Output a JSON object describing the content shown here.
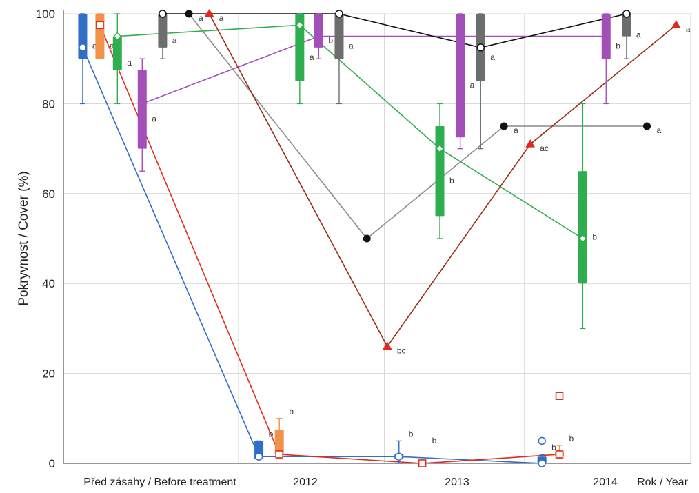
{
  "chart_data": {
    "type": "box",
    "title": "",
    "ylabel": "Pokryvnost / Cover (%)",
    "xlabel": "Rok / Year",
    "ylim": [
      0,
      100
    ],
    "yticks": [
      0,
      20,
      40,
      60,
      80,
      100
    ],
    "grid": true,
    "categories": [
      "Před zásahy / Before treatment",
      "2012",
      "2013",
      "2014"
    ],
    "colors": {
      "blue": "#2f6fc6",
      "orange": "#f0924a",
      "green": "#2fae4f",
      "purple": "#a34fb8",
      "gray": "#6d6d6d",
      "black": "#111111",
      "red": "#e02a1e",
      "darkred": "#9a2a14",
      "silver": "#8a8a8a",
      "grid": "#d6d6d6"
    },
    "boxes": [
      {
        "id": "blue-0",
        "color": "blue",
        "x": 0.66,
        "min": 80,
        "q1": 90,
        "q3": 100,
        "max": 100,
        "median": 92.5,
        "label": "a"
      },
      {
        "id": "orange-0",
        "color": "orange",
        "x": 1.25,
        "min": 90,
        "q1": 90,
        "q3": 100,
        "max": 100,
        "median": 97.5,
        "label": "a"
      },
      {
        "id": "green-0",
        "color": "green",
        "x": 1.85,
        "min": 80,
        "q1": 87.5,
        "q3": 95,
        "max": 100,
        "median": 95,
        "label": "a"
      },
      {
        "id": "purple-0",
        "color": "purple",
        "x": 2.7,
        "min": 65,
        "q1": 70,
        "q3": 87.5,
        "max": 90,
        "median": 80,
        "label": "a"
      },
      {
        "id": "gray-0",
        "color": "gray",
        "x": 3.4,
        "min": 90,
        "q1": 92.5,
        "q3": 100,
        "max": 100,
        "median": 100,
        "label": "a"
      },
      {
        "id": "blue-1",
        "color": "blue",
        "x": 6.7,
        "min": 1,
        "q1": 1,
        "q3": 5,
        "max": 5,
        "median": 1.5,
        "label": "b"
      },
      {
        "id": "orange-1",
        "color": "orange",
        "x": 7.4,
        "min": 1,
        "q1": 2,
        "q3": 7.5,
        "max": 10,
        "median": 2,
        "label": "b"
      },
      {
        "id": "green-1",
        "color": "green",
        "x": 8.1,
        "min": 80,
        "q1": 85,
        "q3": 100,
        "max": 100,
        "median": 97.5,
        "label": "a"
      },
      {
        "id": "purple-1",
        "color": "purple",
        "x": 8.75,
        "min": 90,
        "q1": 92.5,
        "q3": 100,
        "max": 100,
        "median": 95,
        "label": "b"
      },
      {
        "id": "gray-1",
        "color": "gray",
        "x": 9.45,
        "min": 80,
        "q1": 90,
        "q3": 100,
        "max": 100,
        "median": 100,
        "label": "a"
      },
      {
        "id": "blue-2",
        "color": "blue",
        "x": 11.5,
        "min": 0,
        "q1": 1,
        "q3": 2,
        "max": 5,
        "median": 1.5,
        "label": "b"
      },
      {
        "id": "green-2",
        "color": "green",
        "x": 12.9,
        "min": 50,
        "q1": 55,
        "q3": 75,
        "max": 80,
        "median": 70,
        "label": "b"
      },
      {
        "id": "purple-2",
        "color": "purple",
        "x": 13.6,
        "min": 70,
        "q1": 72.5,
        "q3": 100,
        "max": 100,
        "median": 95,
        "label": "a"
      },
      {
        "id": "gray-2",
        "color": "gray",
        "x": 14.3,
        "min": 70,
        "q1": 85,
        "q3": 100,
        "max": 100,
        "median": 92.5,
        "label": "a"
      },
      {
        "id": "blue-3",
        "color": "blue",
        "x": 16.4,
        "min": 0,
        "q1": 0,
        "q3": 1.5,
        "max": 2,
        "median": 0,
        "label": "b"
      },
      {
        "id": "orange-3",
        "color": "orange",
        "x": 17.0,
        "min": 1,
        "q1": 1.5,
        "q3": 2.5,
        "max": 4,
        "median": 2,
        "label": "b"
      },
      {
        "id": "green-3",
        "color": "green",
        "x": 17.8,
        "min": 30,
        "q1": 40,
        "q3": 65,
        "max": 80,
        "median": 50,
        "label": "b"
      },
      {
        "id": "purple-3",
        "color": "purple",
        "x": 18.6,
        "min": 80,
        "q1": 90,
        "q3": 100,
        "max": 100,
        "median": 95,
        "label": "b"
      },
      {
        "id": "gray-3",
        "color": "gray",
        "x": 19.3,
        "min": 90,
        "q1": 95,
        "q3": 100,
        "max": 100,
        "median": 100,
        "label": "a"
      }
    ],
    "outliers": [
      {
        "color": "blue",
        "shape": "circle",
        "x": 16.4,
        "y": 5
      },
      {
        "color": "red",
        "shape": "square",
        "x": 17.0,
        "y": 15
      }
    ],
    "series": [
      {
        "color": "blue",
        "shape": "circle-open",
        "points": [
          [
            0.66,
            92.5
          ],
          [
            6.7,
            1.5
          ],
          [
            11.5,
            1.5
          ],
          [
            16.4,
            0
          ]
        ]
      },
      {
        "color": "red",
        "shape": "square-open",
        "points": [
          [
            1.25,
            97.5
          ],
          [
            7.4,
            2
          ],
          [
            12.3,
            0
          ],
          [
            17.0,
            2
          ]
        ]
      },
      {
        "color": "green",
        "shape": "diamond-open",
        "points": [
          [
            1.85,
            95
          ],
          [
            8.1,
            97.5
          ],
          [
            12.9,
            70
          ],
          [
            17.8,
            50
          ]
        ]
      },
      {
        "color": "purple",
        "shape": "none",
        "points": [
          [
            2.7,
            80
          ],
          [
            8.75,
            95
          ],
          [
            13.6,
            95
          ],
          [
            18.6,
            95
          ]
        ]
      },
      {
        "color": "black",
        "shape": "circle-open",
        "points": [
          [
            3.4,
            100
          ],
          [
            9.45,
            100
          ],
          [
            14.3,
            92.5
          ],
          [
            19.3,
            100
          ]
        ]
      },
      {
        "color": "silver",
        "shape": "circle-filled",
        "points": [
          [
            4.3,
            100
          ],
          [
            10.4,
            50
          ],
          [
            15.1,
            75
          ],
          [
            20.0,
            75
          ]
        ]
      },
      {
        "color": "darkred",
        "shape": "triangle-filled",
        "points": [
          [
            5.0,
            100
          ],
          [
            11.1,
            26
          ],
          [
            16.0,
            71
          ],
          [
            21.0,
            97.5
          ]
        ]
      }
    ],
    "point_labels": [
      {
        "color": "silver",
        "x": 4.3,
        "y": 100,
        "text": "a"
      },
      {
        "color": "darkred",
        "x": 5.0,
        "y": 100,
        "text": "a"
      },
      {
        "color": "silver",
        "x": 15.1,
        "y": 75,
        "text": "a"
      },
      {
        "color": "silver",
        "x": 20.0,
        "y": 75,
        "text": "a"
      },
      {
        "color": "darkred",
        "x": 11.1,
        "y": 26,
        "text": "bc"
      },
      {
        "color": "darkred",
        "x": 16.0,
        "y": 71,
        "text": "ac"
      },
      {
        "color": "darkred",
        "x": 21.0,
        "y": 97.5,
        "text": "a"
      },
      {
        "color": "red",
        "x": 12.3,
        "y": 6,
        "text": "b"
      }
    ]
  }
}
